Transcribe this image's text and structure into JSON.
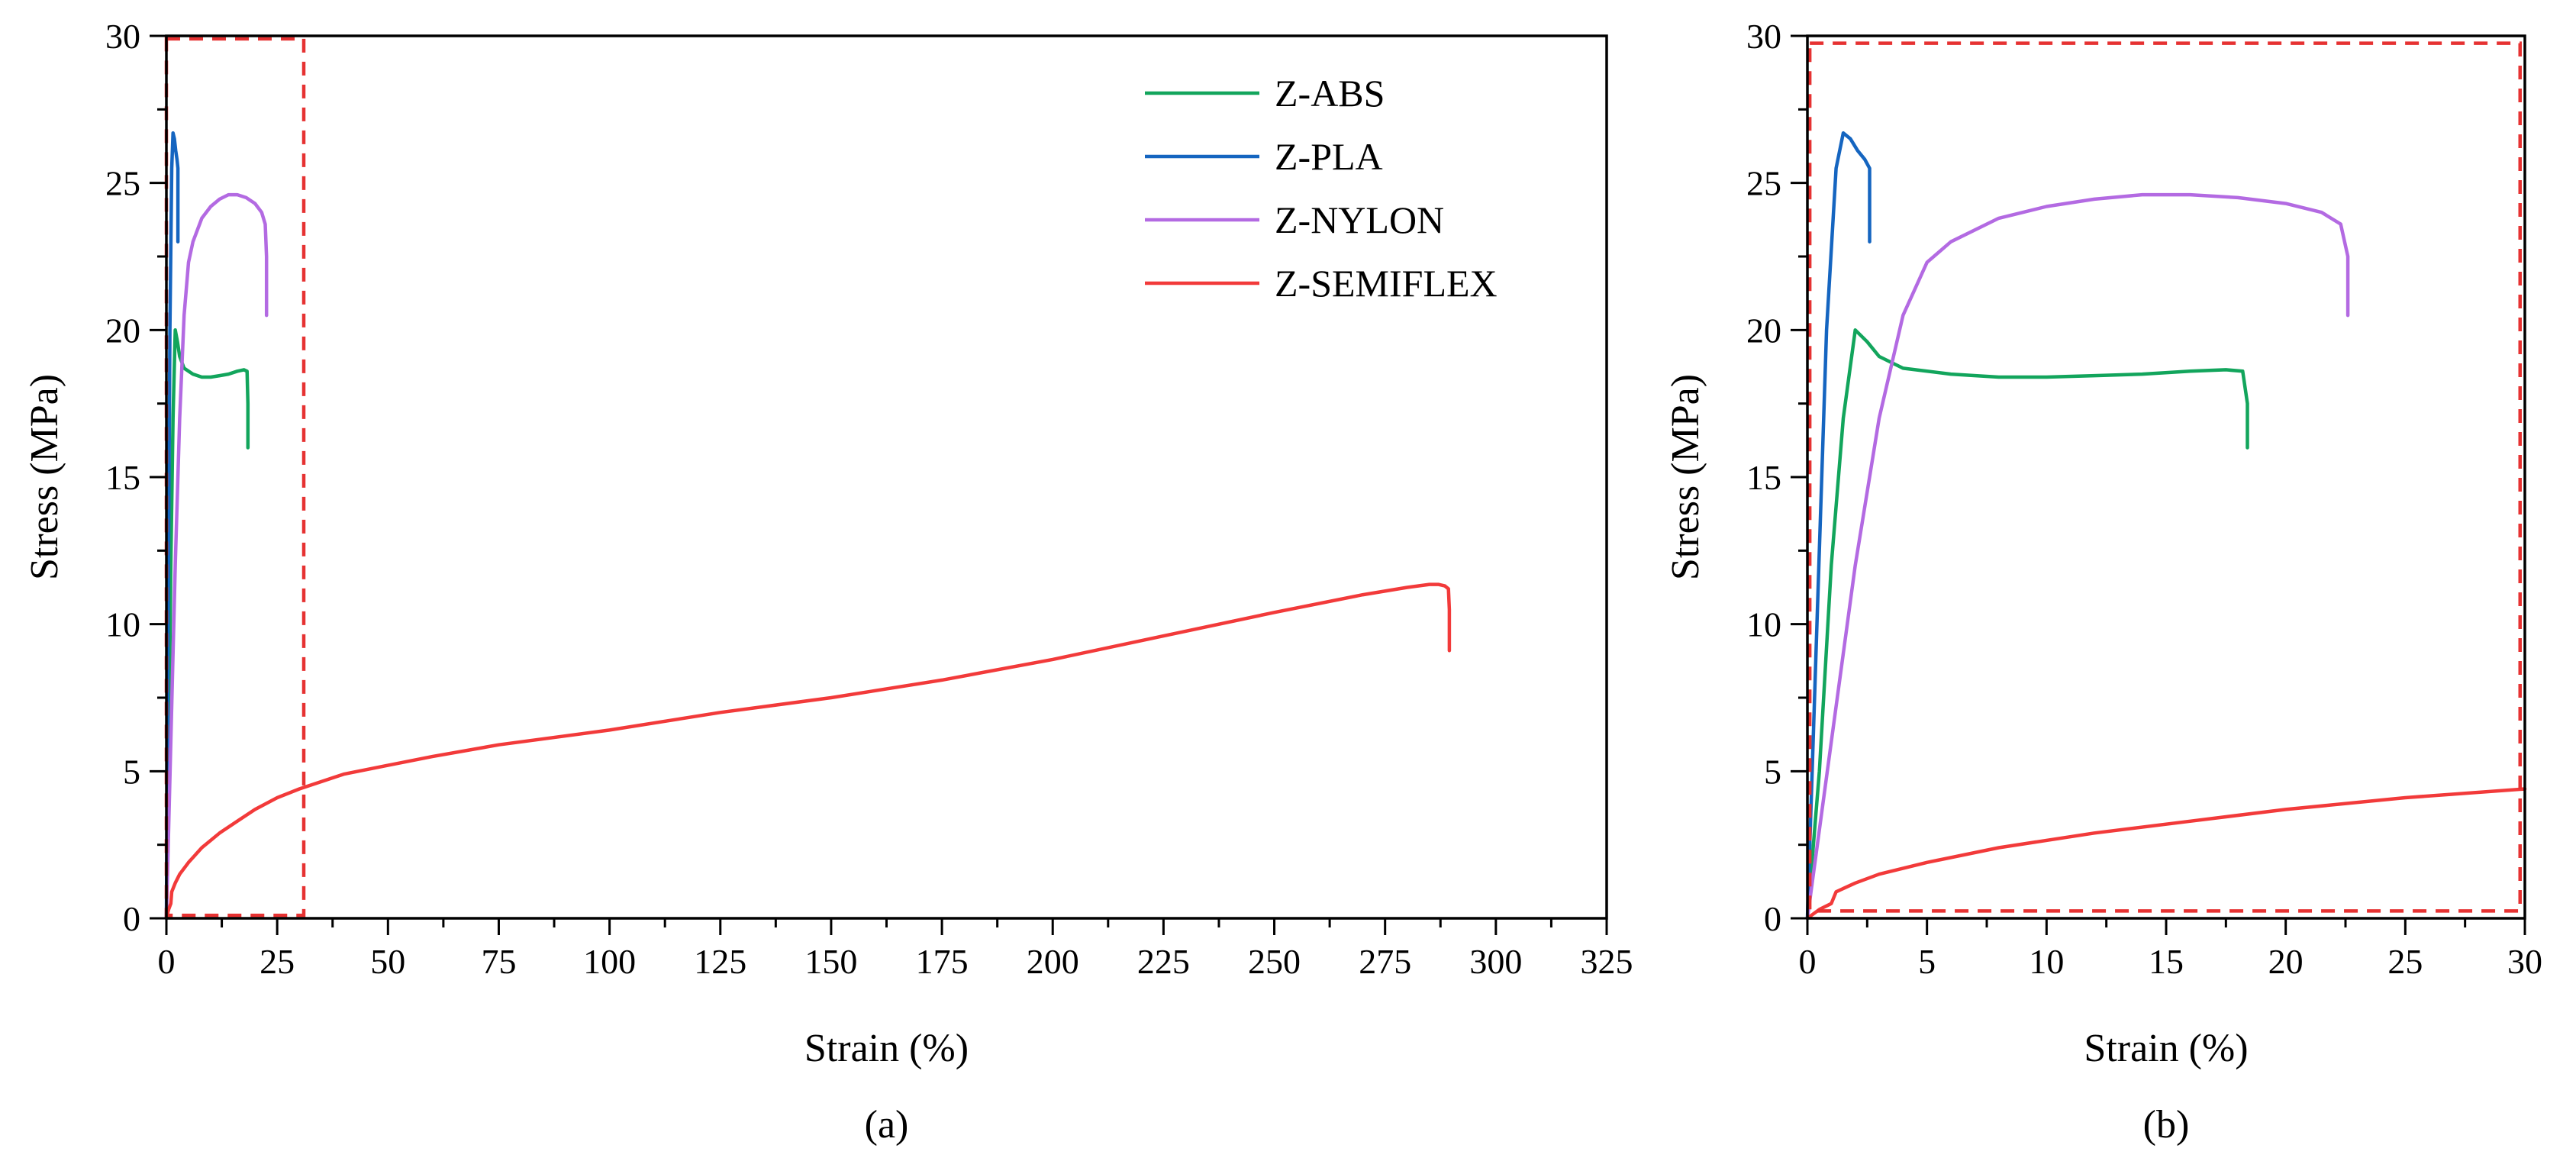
{
  "colors": {
    "Z-ABS": "#12a55c",
    "Z-PLA": "#1565c0",
    "Z-NYLON": "#b36ae2",
    "Z-SEMIFLEX": "#f23a3a",
    "zoom_box": "#e63232"
  },
  "chart_data": [
    {
      "panel_label": "(a)",
      "type": "line",
      "xlabel": "Strain (%)",
      "ylabel": "Stress (MPa)",
      "xlim": [
        0,
        325
      ],
      "ylim": [
        0,
        30
      ],
      "xticks": [
        0,
        25,
        50,
        75,
        100,
        125,
        150,
        175,
        200,
        225,
        250,
        275,
        300,
        325
      ],
      "yticks": [
        0,
        5,
        10,
        15,
        20,
        25,
        30
      ],
      "legend": [
        "Z-ABS",
        "Z-PLA",
        "Z-NYLON",
        "Z-SEMIFLEX"
      ],
      "legend_position": "top-right",
      "zoom_box": {
        "x": [
          0,
          31
        ],
        "y": [
          0.1,
          29.9
        ]
      },
      "series": [
        {
          "name": "Z-ABS",
          "x": [
            0,
            0.5,
            1,
            1.5,
            2,
            2.5,
            3,
            4,
            6,
            8,
            10,
            12,
            14,
            16,
            17.5,
            18.2,
            18.4,
            18.4
          ],
          "y": [
            0,
            5,
            12,
            17,
            20,
            19.6,
            19.1,
            18.7,
            18.5,
            18.4,
            18.4,
            18.45,
            18.5,
            18.6,
            18.65,
            18.6,
            17.5,
            16
          ]
        },
        {
          "name": "Z-PLA",
          "x": [
            0,
            0.4,
            0.8,
            1.2,
            1.5,
            1.8,
            2.1,
            2.4,
            2.6,
            2.6
          ],
          "y": [
            0,
            10,
            20,
            25.5,
            26.7,
            26.5,
            26.1,
            25.8,
            25.5,
            23
          ]
        },
        {
          "name": "Z-NYLON",
          "x": [
            0,
            1,
            2,
            3,
            4,
            5,
            6,
            8,
            10,
            12,
            14,
            16,
            18,
            20,
            21.5,
            22.3,
            22.6,
            22.6
          ],
          "y": [
            0,
            6,
            12,
            17,
            20.5,
            22.3,
            23,
            23.8,
            24.2,
            24.45,
            24.6,
            24.6,
            24.5,
            24.3,
            24.0,
            23.6,
            22.5,
            20.5
          ]
        },
        {
          "name": "Z-SEMIFLEX",
          "x": [
            0,
            0.5,
            1,
            1.2,
            2,
            3,
            5,
            8,
            12,
            16,
            20,
            25,
            30,
            40,
            50,
            60,
            75,
            100,
            125,
            150,
            175,
            200,
            225,
            250,
            270,
            280,
            285,
            287,
            288.5,
            289.3,
            289.5,
            289.5
          ],
          "y": [
            0,
            0.3,
            0.5,
            0.9,
            1.2,
            1.5,
            1.9,
            2.4,
            2.9,
            3.3,
            3.7,
            4.1,
            4.4,
            4.9,
            5.2,
            5.5,
            5.9,
            6.4,
            7.0,
            7.5,
            8.1,
            8.8,
            9.6,
            10.4,
            11.0,
            11.25,
            11.35,
            11.35,
            11.3,
            11.2,
            10.5,
            9.1
          ]
        }
      ]
    },
    {
      "panel_label": "(b)",
      "type": "line",
      "xlabel": "Strain (%)",
      "ylabel": "Stress (MPa)",
      "xlim": [
        0,
        30
      ],
      "ylim": [
        0,
        30
      ],
      "xticks": [
        0,
        5,
        10,
        15,
        20,
        25,
        30
      ],
      "yticks": [
        0,
        5,
        10,
        15,
        20,
        25,
        30
      ],
      "zoom_box": {
        "x": [
          0.1,
          29.8
        ],
        "y": [
          0.25,
          29.75
        ]
      },
      "series": [
        {
          "name": "Z-ABS",
          "x": [
            0,
            0.5,
            1,
            1.5,
            2,
            2.5,
            3,
            4,
            6,
            8,
            10,
            12,
            14,
            16,
            17.5,
            18.2,
            18.4,
            18.4
          ],
          "y": [
            0,
            5,
            12,
            17,
            20,
            19.6,
            19.1,
            18.7,
            18.5,
            18.4,
            18.4,
            18.45,
            18.5,
            18.6,
            18.65,
            18.6,
            17.5,
            16
          ]
        },
        {
          "name": "Z-PLA",
          "x": [
            0,
            0.4,
            0.8,
            1.2,
            1.5,
            1.8,
            2.1,
            2.4,
            2.6,
            2.6
          ],
          "y": [
            0,
            10,
            20,
            25.5,
            26.7,
            26.5,
            26.1,
            25.8,
            25.5,
            23
          ]
        },
        {
          "name": "Z-NYLON",
          "x": [
            0,
            1,
            2,
            3,
            4,
            5,
            6,
            8,
            10,
            12,
            14,
            16,
            18,
            20,
            21.5,
            22.3,
            22.6,
            22.6
          ],
          "y": [
            0,
            6,
            12,
            17,
            20.5,
            22.3,
            23,
            23.8,
            24.2,
            24.45,
            24.6,
            24.6,
            24.5,
            24.3,
            24.0,
            23.6,
            22.5,
            20.5
          ]
        },
        {
          "name": "Z-SEMIFLEX",
          "x": [
            0,
            0.5,
            1,
            1.2,
            2,
            3,
            5,
            8,
            12,
            16,
            20,
            25,
            30
          ],
          "y": [
            0,
            0.3,
            0.5,
            0.9,
            1.2,
            1.5,
            1.9,
            2.4,
            2.9,
            3.3,
            3.7,
            4.1,
            4.4
          ]
        }
      ]
    }
  ]
}
